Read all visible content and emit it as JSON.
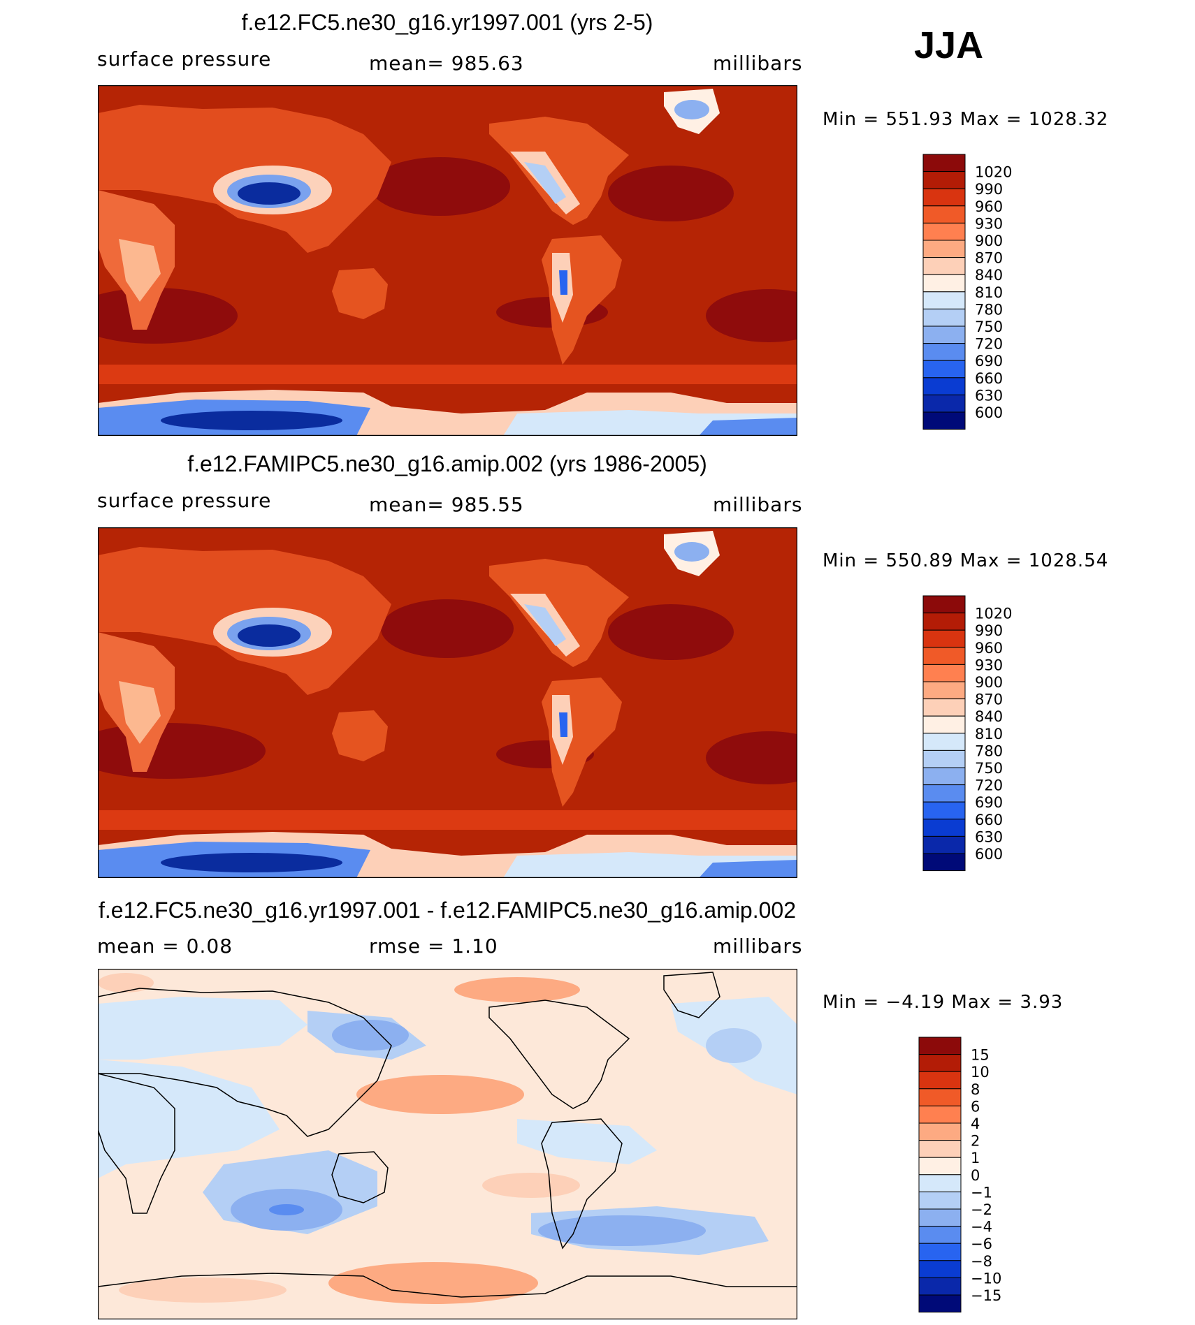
{
  "season": "JJA",
  "chart_data": [
    {
      "type": "heatmap",
      "title": "f.e12.FC5.ne30_g16.yr1997.001 (yrs 2-5)",
      "left_label": "surface pressure",
      "center_label": "mean= 985.63",
      "units": "millibars",
      "stats": "Min = 551.93 Max = 1028.32",
      "min": 551.93,
      "max": 1028.32,
      "mean": 985.63,
      "colorbar": {
        "labels": [
          "1020",
          "990",
          "960",
          "930",
          "900",
          "870",
          "840",
          "810",
          "780",
          "750",
          "720",
          "690",
          "660",
          "630",
          "600"
        ],
        "colors": [
          "#8c0a0a",
          "#b31c06",
          "#d93410",
          "#f05a28",
          "#ff8050",
          "#fdaa82",
          "#fdd0b8",
          "#fff0e4",
          "#d5e8fa",
          "#b4cff5",
          "#8cb0f0",
          "#5a8cf0",
          "#2864f0",
          "#0a3cd2",
          "#0a28aa",
          "#000a78"
        ]
      }
    },
    {
      "type": "heatmap",
      "title": "f.e12.FAMIPC5.ne30_g16.amip.002 (yrs 1986-2005)",
      "left_label": "surface pressure",
      "center_label": "mean= 985.55",
      "units": "millibars",
      "stats": "Min = 550.89 Max = 1028.54",
      "min": 550.89,
      "max": 1028.54,
      "mean": 985.55,
      "colorbar": {
        "labels": [
          "1020",
          "990",
          "960",
          "930",
          "900",
          "870",
          "840",
          "810",
          "780",
          "750",
          "720",
          "690",
          "660",
          "630",
          "600"
        ],
        "colors": [
          "#8c0a0a",
          "#b31c06",
          "#d93410",
          "#f05a28",
          "#ff8050",
          "#fdaa82",
          "#fdd0b8",
          "#fff0e4",
          "#d5e8fa",
          "#b4cff5",
          "#8cb0f0",
          "#5a8cf0",
          "#2864f0",
          "#0a3cd2",
          "#0a28aa",
          "#000a78"
        ]
      }
    },
    {
      "type": "heatmap",
      "title": "f.e12.FC5.ne30_g16.yr1997.001 - f.e12.FAMIPC5.ne30_g16.amip.002",
      "left_label": "mean =     0.08",
      "center_label": "rmse =     1.10",
      "units": "millibars",
      "stats": "Min =   −4.19 Max =     3.93",
      "min": -4.19,
      "max": 3.93,
      "mean": 0.08,
      "rmse": 1.1,
      "colorbar": {
        "labels": [
          "15",
          "10",
          "8",
          "6",
          "4",
          "2",
          "1",
          "0",
          "−1",
          "−2",
          "−4",
          "−6",
          "−8",
          "−10",
          "−15"
        ],
        "colors": [
          "#8c0a0a",
          "#b31c06",
          "#d93410",
          "#f05a28",
          "#ff8050",
          "#fdaa82",
          "#fdd0b8",
          "#fff0e4",
          "#d5e8fa",
          "#b4cff5",
          "#8cb0f0",
          "#5a8cf0",
          "#2864f0",
          "#0a3cd2",
          "#0a28aa",
          "#000a78"
        ]
      }
    }
  ]
}
